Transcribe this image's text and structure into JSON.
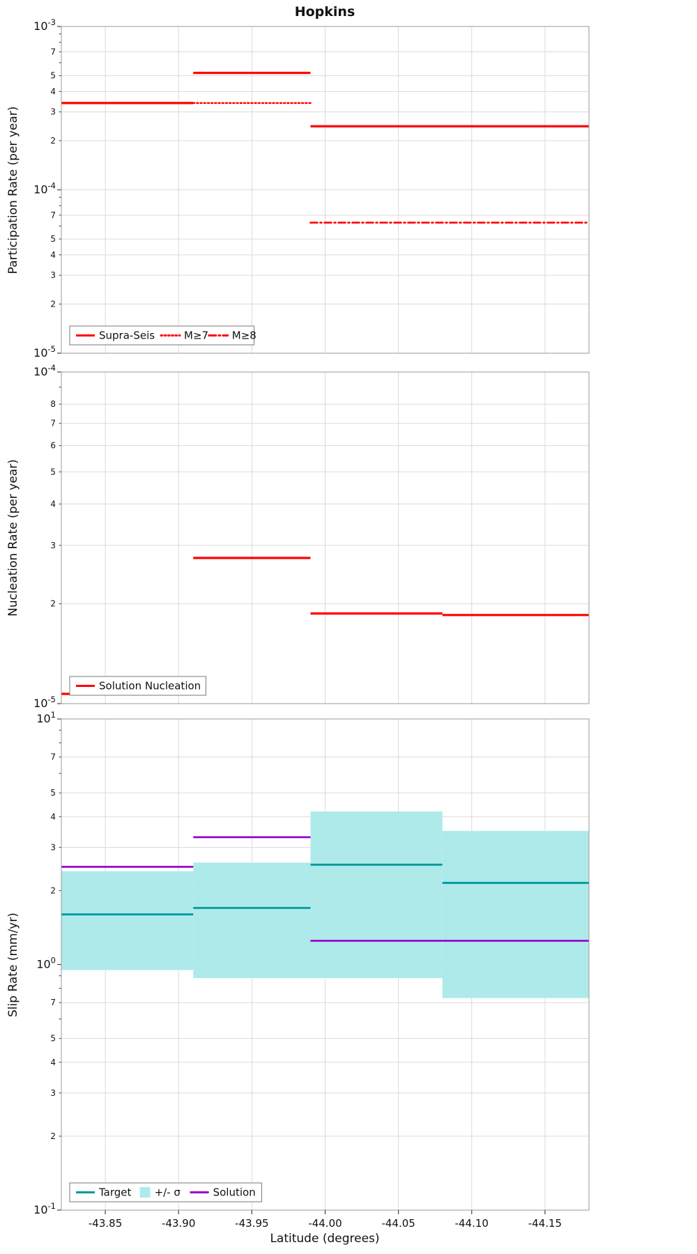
{
  "title": "Hopkins",
  "x_axis": {
    "label": "Latitude (degrees)",
    "range": [
      -43.82,
      -44.18
    ],
    "ticks": [
      {
        "v": -43.85,
        "label": "-43.85"
      },
      {
        "v": -43.9,
        "label": "-43.90"
      },
      {
        "v": -43.95,
        "label": "-43.95"
      },
      {
        "v": -44.0,
        "label": "-44.00"
      },
      {
        "v": -44.05,
        "label": "-44.05"
      },
      {
        "v": -44.1,
        "label": "-44.10"
      },
      {
        "v": -44.15,
        "label": "-44.15"
      }
    ]
  },
  "colors": {
    "red": "#ff0000",
    "teal": "#009999",
    "purple": "#9900cc",
    "band": "#aeeaea",
    "grid": "#dadada",
    "border": "#999999"
  },
  "chart_data": [
    {
      "type": "line",
      "name": "participation",
      "ylabel": "Participation Rate (per year)",
      "yscale": "log",
      "ylim": [
        1e-05,
        0.001
      ],
      "y_minor_labeled": [
        7,
        5,
        4,
        3,
        2
      ],
      "legend": [
        {
          "label": "Supra-Seis",
          "swatch": "line",
          "color": "red",
          "dash": "solid"
        },
        {
          "label": "M≥7",
          "swatch": "line",
          "color": "red",
          "dash": "dotted"
        },
        {
          "label": "M≥8",
          "swatch": "line",
          "color": "red",
          "dash": "dashdot"
        }
      ],
      "series": [
        {
          "name": "Supra-Seis",
          "color": "red",
          "dash": "solid",
          "width": 3.2,
          "segments": [
            [
              -43.82,
              -43.91,
              0.00034
            ],
            [
              -43.91,
              -43.99,
              0.00052
            ],
            [
              -43.99,
              -44.18,
              0.000245
            ]
          ]
        },
        {
          "name": "M≥7",
          "color": "red",
          "dash": "dotted",
          "width": 2.6,
          "segments": [
            [
              -43.91,
              -43.99,
              0.00034
            ]
          ]
        },
        {
          "name": "M≥8",
          "color": "red",
          "dash": "dashdot",
          "width": 2.6,
          "segments": [
            [
              -43.99,
              -44.18,
              6.3e-05
            ]
          ]
        }
      ]
    },
    {
      "type": "line",
      "name": "nucleation",
      "ylabel": "Nucleation Rate (per year)",
      "yscale": "log",
      "ylim": [
        1e-05,
        0.0001
      ],
      "y_minor_labeled": [
        8,
        7,
        6,
        5,
        4,
        3,
        2
      ],
      "legend": [
        {
          "label": "Solution Nucleation",
          "swatch": "line",
          "color": "red",
          "dash": "solid"
        }
      ],
      "series": [
        {
          "name": "Solution Nucleation",
          "color": "red",
          "dash": "solid",
          "width": 3.2,
          "segments": [
            [
              -43.82,
              -43.91,
              1.07e-05
            ],
            [
              -43.91,
              -43.99,
              2.75e-05
            ],
            [
              -43.99,
              -44.08,
              1.87e-05
            ],
            [
              -44.08,
              -44.18,
              1.85e-05
            ]
          ]
        }
      ]
    },
    {
      "type": "line",
      "name": "slip-rate",
      "ylabel": "Slip Rate (mm/yr)",
      "yscale": "log",
      "ylim": [
        0.1,
        10
      ],
      "y_minor_labeled": [
        7,
        5,
        4,
        3,
        2
      ],
      "legend": [
        {
          "label": "Target",
          "swatch": "line",
          "color": "teal",
          "dash": "solid"
        },
        {
          "label": "+/- σ",
          "swatch": "band",
          "color": "band"
        },
        {
          "label": "Solution",
          "swatch": "line",
          "color": "purple",
          "dash": "solid"
        }
      ],
      "bands": [
        {
          "name": "+/- σ",
          "color": "band",
          "segments": [
            [
              -43.82,
              -43.91,
              0.95,
              2.4
            ],
            [
              -43.91,
              -43.99,
              0.88,
              2.6
            ],
            [
              -43.99,
              -44.08,
              0.88,
              4.2
            ],
            [
              -44.08,
              -44.18,
              0.73,
              3.5
            ]
          ]
        }
      ],
      "series": [
        {
          "name": "Target",
          "color": "teal",
          "dash": "solid",
          "width": 2.8,
          "segments": [
            [
              -43.82,
              -43.91,
              1.6
            ],
            [
              -43.91,
              -43.99,
              1.7
            ],
            [
              -43.99,
              -44.08,
              2.55
            ],
            [
              -44.08,
              -44.18,
              2.15
            ]
          ]
        },
        {
          "name": "Solution",
          "color": "purple",
          "dash": "solid",
          "width": 2.8,
          "segments": [
            [
              -43.82,
              -43.91,
              2.5
            ],
            [
              -43.91,
              -43.99,
              3.3
            ],
            [
              -43.99,
              -44.08,
              1.25
            ],
            [
              -44.08,
              -44.18,
              1.25
            ]
          ]
        }
      ]
    }
  ]
}
